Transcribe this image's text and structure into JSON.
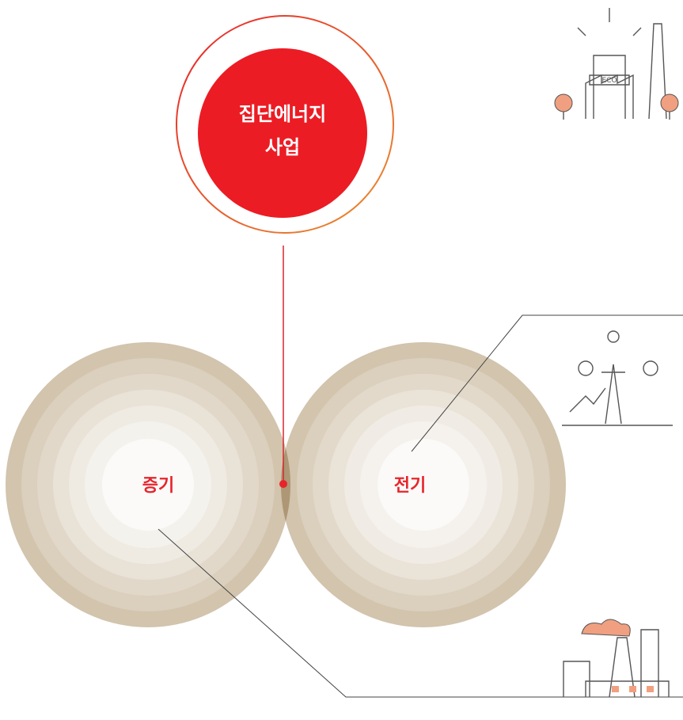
{
  "center": {
    "label_lines": [
      "집단에너지",
      "사업"
    ]
  },
  "nodes": [
    {
      "label": "증기"
    },
    {
      "label": "전기"
    }
  ],
  "icons": [
    {
      "label": "ECO"
    }
  ]
}
